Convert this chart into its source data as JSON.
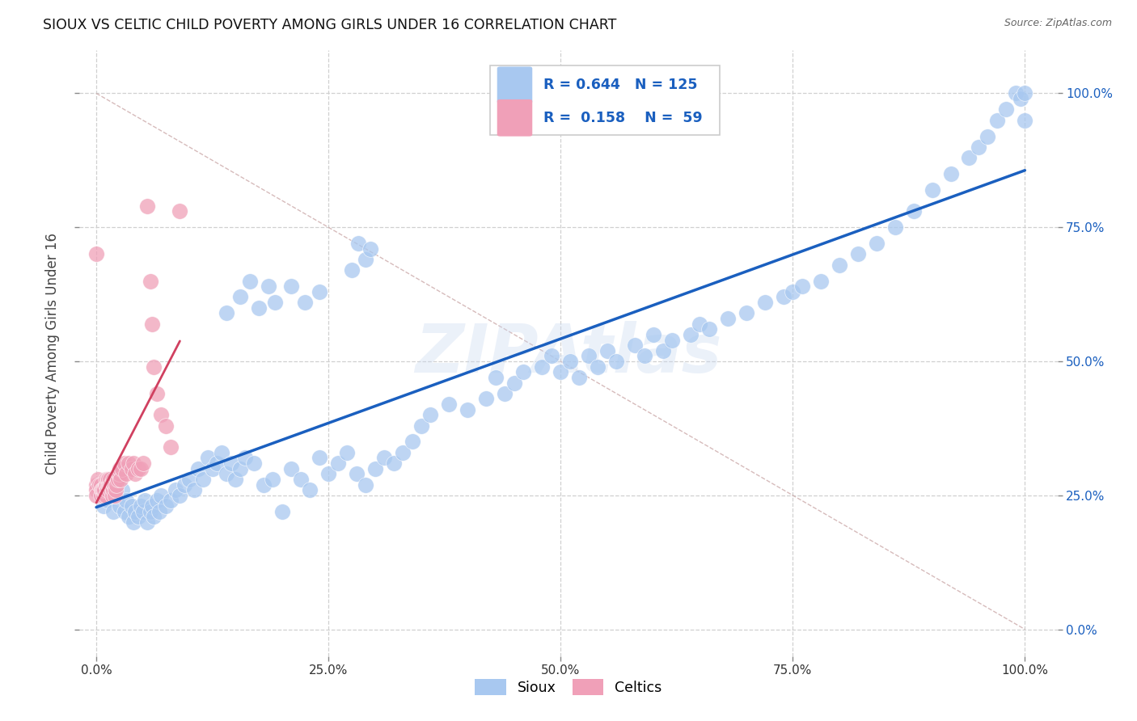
{
  "title": "SIOUX VS CELTIC CHILD POVERTY AMONG GIRLS UNDER 16 CORRELATION CHART",
  "source": "Source: ZipAtlas.com",
  "ylabel": "Child Poverty Among Girls Under 16",
  "watermark": "ZIPAtlas",
  "sioux_R": 0.644,
  "sioux_N": 125,
  "celtics_R": 0.158,
  "celtics_N": 59,
  "sioux_color": "#a8c8f0",
  "celtics_color": "#f0a0b8",
  "trend_sioux_color": "#1a5fbf",
  "trend_celtics_color": "#d04060",
  "diag_color": "#ccaaaa",
  "background_color": "#ffffff",
  "grid_color": "#d0d0d0",
  "sioux_x": [
    0.005,
    0.008,
    0.01,
    0.012,
    0.015,
    0.018,
    0.02,
    0.022,
    0.025,
    0.028,
    0.03,
    0.032,
    0.035,
    0.038,
    0.04,
    0.042,
    0.045,
    0.048,
    0.05,
    0.052,
    0.055,
    0.058,
    0.06,
    0.062,
    0.065,
    0.068,
    0.07,
    0.075,
    0.08,
    0.085,
    0.09,
    0.095,
    0.1,
    0.105,
    0.11,
    0.115,
    0.12,
    0.125,
    0.13,
    0.135,
    0.14,
    0.145,
    0.15,
    0.155,
    0.16,
    0.17,
    0.18,
    0.19,
    0.2,
    0.21,
    0.22,
    0.23,
    0.24,
    0.25,
    0.26,
    0.27,
    0.28,
    0.29,
    0.3,
    0.31,
    0.32,
    0.33,
    0.34,
    0.35,
    0.36,
    0.38,
    0.4,
    0.42,
    0.43,
    0.44,
    0.45,
    0.46,
    0.48,
    0.49,
    0.5,
    0.51,
    0.52,
    0.53,
    0.54,
    0.55,
    0.56,
    0.58,
    0.59,
    0.6,
    0.61,
    0.62,
    0.64,
    0.65,
    0.66,
    0.68,
    0.7,
    0.72,
    0.74,
    0.75,
    0.76,
    0.78,
    0.8,
    0.82,
    0.84,
    0.86,
    0.88,
    0.9,
    0.92,
    0.94,
    0.95,
    0.96,
    0.97,
    0.98,
    0.99,
    0.995,
    1.0,
    1.0,
    0.275,
    0.282,
    0.29,
    0.295,
    0.14,
    0.155,
    0.165,
    0.175,
    0.185,
    0.192,
    0.21,
    0.225,
    0.24
  ],
  "sioux_y": [
    0.25,
    0.23,
    0.26,
    0.24,
    0.28,
    0.22,
    0.25,
    0.27,
    0.23,
    0.26,
    0.22,
    0.24,
    0.21,
    0.23,
    0.2,
    0.22,
    0.21,
    0.23,
    0.22,
    0.24,
    0.2,
    0.22,
    0.23,
    0.21,
    0.24,
    0.22,
    0.25,
    0.23,
    0.24,
    0.26,
    0.25,
    0.27,
    0.28,
    0.26,
    0.3,
    0.28,
    0.32,
    0.3,
    0.31,
    0.33,
    0.29,
    0.31,
    0.28,
    0.3,
    0.32,
    0.31,
    0.27,
    0.28,
    0.22,
    0.3,
    0.28,
    0.26,
    0.32,
    0.29,
    0.31,
    0.33,
    0.29,
    0.27,
    0.3,
    0.32,
    0.31,
    0.33,
    0.35,
    0.38,
    0.4,
    0.42,
    0.41,
    0.43,
    0.47,
    0.44,
    0.46,
    0.48,
    0.49,
    0.51,
    0.48,
    0.5,
    0.47,
    0.51,
    0.49,
    0.52,
    0.5,
    0.53,
    0.51,
    0.55,
    0.52,
    0.54,
    0.55,
    0.57,
    0.56,
    0.58,
    0.59,
    0.61,
    0.62,
    0.63,
    0.64,
    0.65,
    0.68,
    0.7,
    0.72,
    0.75,
    0.78,
    0.82,
    0.85,
    0.88,
    0.9,
    0.92,
    0.95,
    0.97,
    1.0,
    0.99,
    0.95,
    1.0,
    0.67,
    0.72,
    0.69,
    0.71,
    0.59,
    0.62,
    0.65,
    0.6,
    0.64,
    0.61,
    0.64,
    0.61,
    0.63
  ],
  "celtics_x": [
    0.0,
    0.0,
    0.0,
    0.0,
    0.002,
    0.003,
    0.005,
    0.005,
    0.006,
    0.007,
    0.008,
    0.008,
    0.009,
    0.01,
    0.01,
    0.01,
    0.011,
    0.012,
    0.012,
    0.013,
    0.013,
    0.014,
    0.015,
    0.015,
    0.016,
    0.016,
    0.017,
    0.018,
    0.018,
    0.019,
    0.02,
    0.02,
    0.021,
    0.022,
    0.022,
    0.023,
    0.024,
    0.025,
    0.025,
    0.026,
    0.028,
    0.03,
    0.032,
    0.035,
    0.038,
    0.04,
    0.042,
    0.045,
    0.048,
    0.05,
    0.055,
    0.058,
    0.06,
    0.062,
    0.065,
    0.07,
    0.075,
    0.08,
    0.09
  ],
  "celtics_y": [
    0.27,
    0.26,
    0.25,
    0.7,
    0.28,
    0.27,
    0.27,
    0.25,
    0.26,
    0.26,
    0.25,
    0.26,
    0.26,
    0.25,
    0.27,
    0.28,
    0.27,
    0.26,
    0.28,
    0.27,
    0.28,
    0.27,
    0.27,
    0.28,
    0.26,
    0.27,
    0.25,
    0.26,
    0.28,
    0.27,
    0.25,
    0.27,
    0.26,
    0.28,
    0.27,
    0.28,
    0.29,
    0.29,
    0.3,
    0.28,
    0.3,
    0.31,
    0.29,
    0.31,
    0.3,
    0.31,
    0.29,
    0.3,
    0.3,
    0.31,
    0.79,
    0.65,
    0.57,
    0.49,
    0.44,
    0.4,
    0.38,
    0.34,
    0.78
  ],
  "xlim": [
    0.0,
    1.0
  ],
  "ylim": [
    0.0,
    1.0
  ],
  "xticks": [
    0.0,
    0.25,
    0.5,
    0.75,
    1.0
  ],
  "yticks": [
    0.0,
    0.25,
    0.5,
    0.75,
    1.0
  ],
  "xtick_labels": [
    "0.0%",
    "25.0%",
    "50.0%",
    "75.0%",
    "100.0%"
  ],
  "ytick_labels": [
    "0.0%",
    "25.0%",
    "50.0%",
    "75.0%",
    "100.0%"
  ]
}
